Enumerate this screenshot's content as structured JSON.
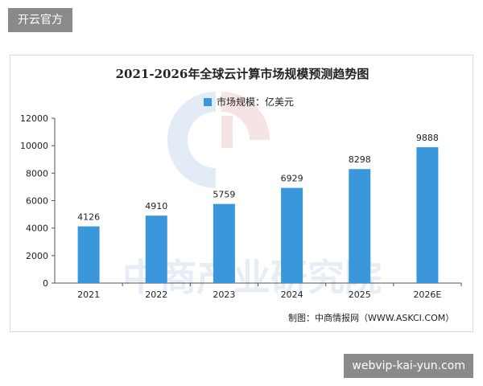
{
  "top_tag": "开云官方",
  "bottom_tag": "webvip-kai-yun.com",
  "watermark": "中商产业研究院",
  "source_note": "制图：中商情报网（WWW.ASKCI.COM）",
  "colors": {
    "bar": "#3a97dc",
    "axis": "#555555",
    "text": "#222222",
    "watermark": "#e6edf5",
    "logo_blue": "#e3ecf6",
    "logo_red": "#f6e4e4"
  },
  "chart_data": {
    "type": "bar",
    "title": "2021-2026年全球云计算市场规模预测趋势图",
    "categories": [
      "2021",
      "2022",
      "2023",
      "2024",
      "2025",
      "2026E"
    ],
    "series": [
      {
        "name": "市场规模：亿美元",
        "values": [
          4126,
          4910,
          5759,
          6929,
          8298,
          9888
        ]
      }
    ],
    "data_labels": [
      "4126",
      "4910",
      "5759",
      "6929",
      "8298",
      "9888"
    ],
    "yticks": [
      "0",
      "2000",
      "4000",
      "6000",
      "8000",
      "10000",
      "12000"
    ],
    "ylim": [
      0,
      12000
    ],
    "xlabel": "",
    "ylabel": "",
    "grid": false,
    "legend_position": "top-center"
  }
}
